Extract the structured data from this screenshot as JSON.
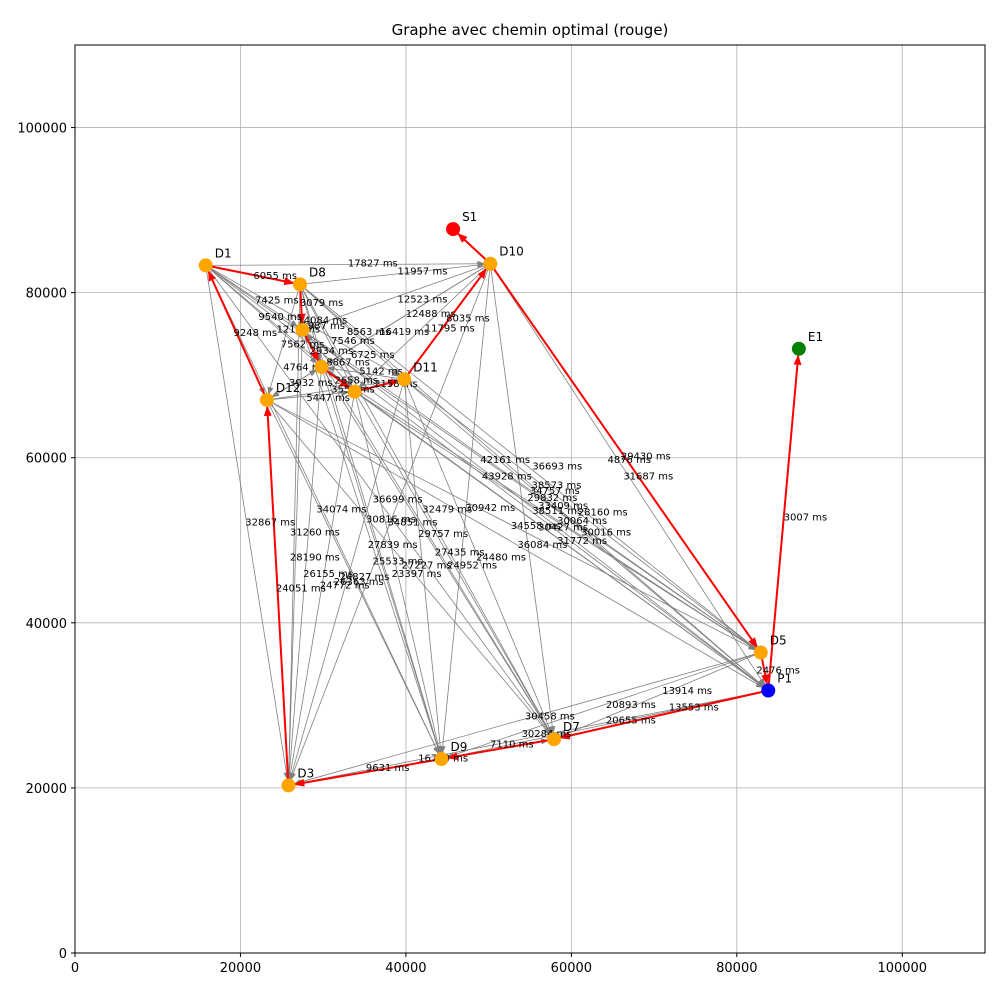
{
  "chart_data": {
    "type": "scatter",
    "title": "Graphe avec chemin optimal (rouge)",
    "xlabel": "",
    "ylabel": "",
    "xlim": [
      0,
      110000
    ],
    "ylim": [
      0,
      110000
    ],
    "grid": true,
    "x_ticks": [
      0,
      20000,
      40000,
      60000,
      80000,
      100000
    ],
    "y_ticks": [
      0,
      20000,
      40000,
      60000,
      80000,
      100000
    ],
    "colors": {
      "depot": "#ffa500",
      "start": "#ff0000",
      "end": "#008000",
      "pickup": "#0000ff",
      "edge": "#808080",
      "path": "#ff0000",
      "grid": "#b0b0b0"
    },
    "nodes": [
      {
        "id": "D1",
        "x": 15800,
        "y": 83300,
        "kind": "depot"
      },
      {
        "id": "D8",
        "x": 27200,
        "y": 81000,
        "kind": "depot"
      },
      {
        "id": "D10",
        "x": 50200,
        "y": 83500,
        "kind": "depot"
      },
      {
        "id": "S1",
        "x": 45700,
        "y": 87700,
        "kind": "start"
      },
      {
        "id": "E1",
        "x": 87500,
        "y": 73200,
        "kind": "end"
      },
      {
        "id": "D12",
        "x": 23200,
        "y": 67000,
        "kind": "depot"
      },
      {
        "id": "D11",
        "x": 39800,
        "y": 69500,
        "kind": "depot"
      },
      {
        "id": "D5",
        "x": 82900,
        "y": 36400,
        "kind": "depot"
      },
      {
        "id": "P1",
        "x": 83800,
        "y": 31800,
        "kind": "pickup"
      },
      {
        "id": "D9",
        "x": 44300,
        "y": 23500,
        "kind": "depot"
      },
      {
        "id": "D7",
        "x": 57900,
        "y": 25900,
        "kind": "depot"
      },
      {
        "id": "D3",
        "x": 25800,
        "y": 20300,
        "kind": "depot"
      },
      {
        "id": "",
        "x": 33800,
        "y": 68000,
        "kind": "depot"
      },
      {
        "id": "",
        "x": 29800,
        "y": 71000,
        "kind": "depot"
      },
      {
        "id": "",
        "x": 27500,
        "y": 75500,
        "kind": "depot"
      }
    ],
    "edges": [
      {
        "from": 0,
        "to": 2
      },
      {
        "from": 0,
        "to": 1
      },
      {
        "from": 0,
        "to": 5
      },
      {
        "from": 0,
        "to": 6
      },
      {
        "from": 0,
        "to": 12
      },
      {
        "from": 0,
        "to": 13
      },
      {
        "from": 0,
        "to": 14
      },
      {
        "from": 0,
        "to": 11
      },
      {
        "from": 0,
        "to": 7
      },
      {
        "from": 0,
        "to": 8
      },
      {
        "from": 0,
        "to": 9
      },
      {
        "from": 0,
        "to": 10
      },
      {
        "from": 1,
        "to": 2
      },
      {
        "from": 1,
        "to": 6
      },
      {
        "from": 1,
        "to": 12
      },
      {
        "from": 1,
        "to": 13
      },
      {
        "from": 1,
        "to": 14
      },
      {
        "from": 1,
        "to": 5
      },
      {
        "from": 1,
        "to": 7
      },
      {
        "from": 1,
        "to": 8
      },
      {
        "from": 1,
        "to": 9
      },
      {
        "from": 1,
        "to": 10
      },
      {
        "from": 1,
        "to": 11
      },
      {
        "from": 2,
        "to": 14
      },
      {
        "from": 2,
        "to": 13
      },
      {
        "from": 2,
        "to": 12
      },
      {
        "from": 2,
        "to": 5
      },
      {
        "from": 2,
        "to": 7
      },
      {
        "from": 2,
        "to": 8
      },
      {
        "from": 2,
        "to": 9
      },
      {
        "from": 2,
        "to": 10
      },
      {
        "from": 2,
        "to": 11
      },
      {
        "from": 5,
        "to": 6
      },
      {
        "from": 5,
        "to": 12
      },
      {
        "from": 5,
        "to": 13
      },
      {
        "from": 5,
        "to": 7
      },
      {
        "from": 5,
        "to": 8
      },
      {
        "from": 5,
        "to": 9
      },
      {
        "from": 5,
        "to": 10
      },
      {
        "from": 5,
        "to": 11
      },
      {
        "from": 6,
        "to": 7
      },
      {
        "from": 6,
        "to": 8
      },
      {
        "from": 6,
        "to": 9
      },
      {
        "from": 6,
        "to": 10
      },
      {
        "from": 6,
        "to": 11
      },
      {
        "from": 6,
        "to": 12
      },
      {
        "from": 6,
        "to": 13
      },
      {
        "from": 12,
        "to": 7
      },
      {
        "from": 12,
        "to": 8
      },
      {
        "from": 12,
        "to": 9
      },
      {
        "from": 12,
        "to": 10
      },
      {
        "from": 12,
        "to": 11
      },
      {
        "from": 12,
        "to": 13
      },
      {
        "from": 12,
        "to": 14
      },
      {
        "from": 13,
        "to": 7
      },
      {
        "from": 13,
        "to": 8
      },
      {
        "from": 13,
        "to": 9
      },
      {
        "from": 13,
        "to": 10
      },
      {
        "from": 13,
        "to": 11
      },
      {
        "from": 13,
        "to": 14
      },
      {
        "from": 14,
        "to": 7
      },
      {
        "from": 14,
        "to": 8
      },
      {
        "from": 14,
        "to": 9
      },
      {
        "from": 14,
        "to": 10
      },
      {
        "from": 14,
        "to": 11
      },
      {
        "from": 7,
        "to": 9
      },
      {
        "from": 7,
        "to": 10
      },
      {
        "from": 7,
        "to": 11
      },
      {
        "from": 8,
        "to": 9
      },
      {
        "from": 8,
        "to": 10
      },
      {
        "from": 8,
        "to": 11
      },
      {
        "from": 9,
        "to": 10
      },
      {
        "from": 9,
        "to": 11
      },
      {
        "from": 10,
        "to": 11
      }
    ],
    "optimal_path": [
      {
        "from": 2,
        "to": 3
      },
      {
        "from": 6,
        "to": 2
      },
      {
        "from": 12,
        "to": 6
      },
      {
        "from": 13,
        "to": 12
      },
      {
        "from": 14,
        "to": 13
      },
      {
        "from": 1,
        "to": 14
      },
      {
        "from": 0,
        "to": 1
      },
      {
        "from": 5,
        "to": 0
      },
      {
        "from": 11,
        "to": 5
      },
      {
        "from": 9,
        "to": 11
      },
      {
        "from": 10,
        "to": 9
      },
      {
        "from": 8,
        "to": 10
      },
      {
        "from": 7,
        "to": 8
      },
      {
        "from": 2,
        "to": 7
      },
      {
        "from": 8,
        "to": 4
      }
    ],
    "edge_labels": [
      {
        "text": "17827 ms",
        "x": 36000,
        "y": 83600
      },
      {
        "text": "11957 ms",
        "x": 42000,
        "y": 82600
      },
      {
        "text": "6055 ms",
        "x": 24200,
        "y": 82100
      },
      {
        "text": "7425 ms",
        "x": 24400,
        "y": 79100
      },
      {
        "text": "12523 ms",
        "x": 42000,
        "y": 79200
      },
      {
        "text": "3079 ms",
        "x": 29800,
        "y": 78800
      },
      {
        "text": "9540 ms",
        "x": 24800,
        "y": 77100
      },
      {
        "text": "14084 ms",
        "x": 29900,
        "y": 76700
      },
      {
        "text": "12488 ms",
        "x": 43000,
        "y": 77500
      },
      {
        "text": "8035 ms",
        "x": 47500,
        "y": 76900
      },
      {
        "text": "1987 ms",
        "x": 30000,
        "y": 76000
      },
      {
        "text": "1212 ms",
        "x": 27000,
        "y": 75600
      },
      {
        "text": "11795 ms",
        "x": 45300,
        "y": 75700
      },
      {
        "text": "8563 ms",
        "x": 35500,
        "y": 75300
      },
      {
        "text": "16419 ms",
        "x": 39800,
        "y": 75300
      },
      {
        "text": "9248 ms",
        "x": 21800,
        "y": 75200
      },
      {
        "text": "7546 ms",
        "x": 33600,
        "y": 74200
      },
      {
        "text": "7562 ms",
        "x": 27500,
        "y": 73800
      },
      {
        "text": "2934 ms",
        "x": 31000,
        "y": 73000
      },
      {
        "text": "6725 ms",
        "x": 36000,
        "y": 72500
      },
      {
        "text": "8867 ms",
        "x": 33000,
        "y": 71600
      },
      {
        "text": "4764 ms",
        "x": 27800,
        "y": 71000
      },
      {
        "text": "5142 ms",
        "x": 37000,
        "y": 70500
      },
      {
        "text": "2658 ms",
        "x": 34000,
        "y": 69400
      },
      {
        "text": "3932 ms",
        "x": 28500,
        "y": 69100
      },
      {
        "text": "2158 ms",
        "x": 38800,
        "y": 69000
      },
      {
        "text": "3552 ms",
        "x": 33600,
        "y": 68300
      },
      {
        "text": "5447 ms",
        "x": 30600,
        "y": 67300
      },
      {
        "text": "29430 ms",
        "x": 69000,
        "y": 60200
      },
      {
        "text": "4876 ms",
        "x": 67000,
        "y": 59800
      },
      {
        "text": "42161 ms",
        "x": 52000,
        "y": 59800
      },
      {
        "text": "36693 ms",
        "x": 58300,
        "y": 59000
      },
      {
        "text": "43928 ms",
        "x": 52200,
        "y": 57800
      },
      {
        "text": "31687 ms",
        "x": 69300,
        "y": 57800
      },
      {
        "text": "38573 ms",
        "x": 58200,
        "y": 56700
      },
      {
        "text": "34757 ms",
        "x": 58000,
        "y": 56000
      },
      {
        "text": "29832 ms",
        "x": 57700,
        "y": 55200
      },
      {
        "text": "36699 ms",
        "x": 39000,
        "y": 55000
      },
      {
        "text": "33409 ms",
        "x": 59000,
        "y": 54200
      },
      {
        "text": "34074 ms",
        "x": 32200,
        "y": 53800
      },
      {
        "text": "32479 ms",
        "x": 45000,
        "y": 53800
      },
      {
        "text": "30942 ms",
        "x": 50200,
        "y": 54000
      },
      {
        "text": "38511 ms",
        "x": 58300,
        "y": 53600
      },
      {
        "text": "28160 ms",
        "x": 63800,
        "y": 53400
      },
      {
        "text": "30816 ms",
        "x": 38200,
        "y": 52600
      },
      {
        "text": "34851 ms",
        "x": 40800,
        "y": 52200
      },
      {
        "text": "30064 ms",
        "x": 61300,
        "y": 52400
      },
      {
        "text": "34558 ms",
        "x": 55700,
        "y": 51800
      },
      {
        "text": "30427 ms",
        "x": 59000,
        "y": 51600
      },
      {
        "text": "32867 ms",
        "x": 23600,
        "y": 52200
      },
      {
        "text": "31260 ms",
        "x": 29000,
        "y": 51000
      },
      {
        "text": "29757 ms",
        "x": 44500,
        "y": 50800
      },
      {
        "text": "30016 ms",
        "x": 64200,
        "y": 51000
      },
      {
        "text": "31772 ms",
        "x": 61300,
        "y": 50000
      },
      {
        "text": "27839 ms",
        "x": 38400,
        "y": 49500
      },
      {
        "text": "36084 ms",
        "x": 56500,
        "y": 49500
      },
      {
        "text": "27435 ms",
        "x": 46500,
        "y": 48600
      },
      {
        "text": "28190 ms",
        "x": 29000,
        "y": 48000
      },
      {
        "text": "24480 ms",
        "x": 51500,
        "y": 48000
      },
      {
        "text": "25533 ms",
        "x": 39000,
        "y": 47500
      },
      {
        "text": "27227 ms",
        "x": 42500,
        "y": 47000
      },
      {
        "text": "24952 ms",
        "x": 48000,
        "y": 47000
      },
      {
        "text": "23397 ms",
        "x": 41300,
        "y": 46000
      },
      {
        "text": "26155 ms",
        "x": 30600,
        "y": 46000
      },
      {
        "text": "24827 ms",
        "x": 35000,
        "y": 45600
      },
      {
        "text": "26363 ms",
        "x": 34300,
        "y": 45000
      },
      {
        "text": "24772 ms",
        "x": 32600,
        "y": 44600
      },
      {
        "text": "24051 ms",
        "x": 27300,
        "y": 44200
      },
      {
        "text": "3007 ms",
        "x": 88300,
        "y": 52800
      },
      {
        "text": "2476 ms",
        "x": 85000,
        "y": 34300
      },
      {
        "text": "13914 ms",
        "x": 74000,
        "y": 31800
      },
      {
        "text": "20893 ms",
        "x": 67200,
        "y": 30100
      },
      {
        "text": "13553 ms",
        "x": 74800,
        "y": 29800
      },
      {
        "text": "30458 ms",
        "x": 57400,
        "y": 28700
      },
      {
        "text": "20655 ms",
        "x": 67200,
        "y": 28200
      },
      {
        "text": "30284 ms",
        "x": 57000,
        "y": 26600
      },
      {
        "text": "7110 ms",
        "x": 52800,
        "y": 25300
      },
      {
        "text": "16740 ms",
        "x": 44500,
        "y": 23600
      },
      {
        "text": "9631 ms",
        "x": 37800,
        "y": 22500
      }
    ]
  }
}
